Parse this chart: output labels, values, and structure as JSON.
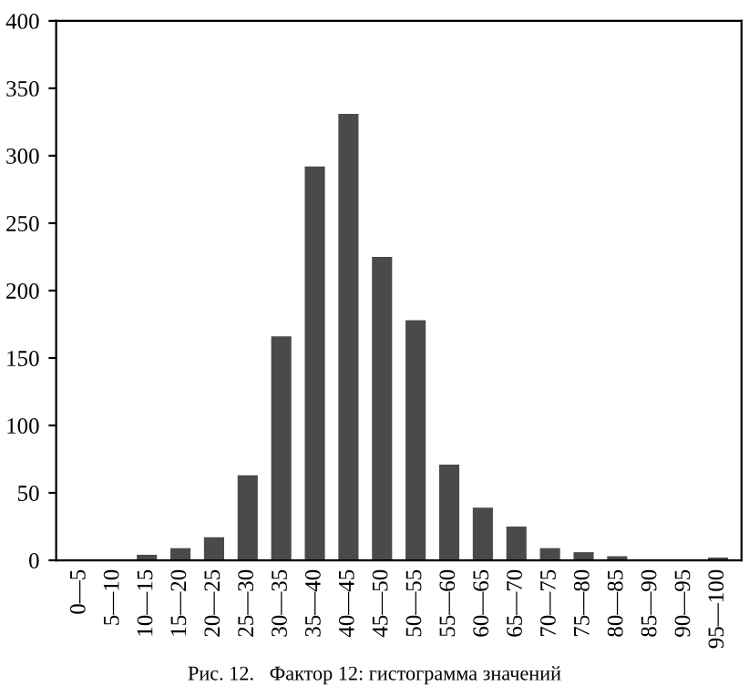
{
  "chart_data": {
    "type": "bar",
    "categories": [
      "0—5",
      "5—10",
      "10—15",
      "15—20",
      "20—25",
      "25—30",
      "30—35",
      "35—40",
      "40—45",
      "45—50",
      "50—55",
      "55—60",
      "60—65",
      "65—70",
      "70—75",
      "75—80",
      "80—85",
      "85—90",
      "90—95",
      "95—100"
    ],
    "values": [
      0,
      0,
      4,
      9,
      17,
      63,
      166,
      292,
      331,
      225,
      178,
      71,
      39,
      25,
      9,
      6,
      3,
      0,
      0,
      2
    ],
    "color": "#4a4a4a",
    "ylim": [
      0,
      400
    ],
    "yticks": [
      0,
      50,
      100,
      150,
      200,
      250,
      300,
      350,
      400
    ],
    "grid": false,
    "legend": false,
    "annotations": [
      "Рис. 12.   Фактор 12: гистограмма значений"
    ]
  }
}
